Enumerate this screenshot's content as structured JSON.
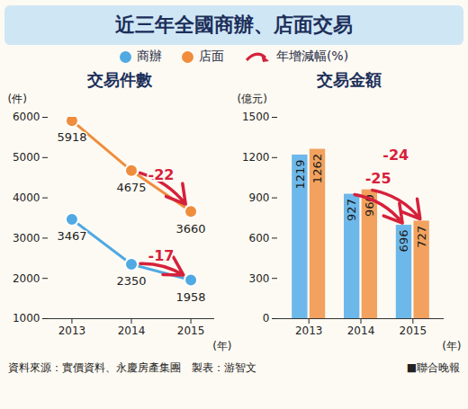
{
  "title": "近三年全國商辦、店面交易",
  "legend": "top",
  "change_legend": {
    "label": "年增減幅(%)",
    "color": "#d6213b"
  },
  "source": "資料來源：實價資料、永慶房產集團　製表：游智文",
  "publisher": "■聯合晚報",
  "chart_data": [
    {
      "type": "line",
      "title": "交易件數",
      "ylabel": "(件)",
      "xlabel": "(年)",
      "categories": [
        "2013",
        "2014",
        "2015"
      ],
      "series": [
        {
          "name": "商辦",
          "color": "#4fa9e3",
          "values": [
            3467,
            2350,
            1958
          ]
        },
        {
          "name": "店面",
          "color": "#ef8d3c",
          "values": [
            5918,
            4675,
            3660
          ]
        }
      ],
      "ylim": [
        1000,
        6000
      ],
      "yticks": [
        1000,
        2000,
        3000,
        4000,
        5000,
        6000
      ],
      "grid": false,
      "data_labels": true,
      "marker": "circle",
      "annotations": [
        {
          "series": "店面",
          "from": "2014",
          "to": "2015",
          "text": "-22"
        },
        {
          "series": "商辦",
          "from": "2014",
          "to": "2015",
          "text": "-17"
        }
      ]
    },
    {
      "type": "bar",
      "title": "交易金額",
      "ylabel": "(億元)",
      "xlabel": "(年)",
      "categories": [
        "2013",
        "2014",
        "2015"
      ],
      "series": [
        {
          "name": "商辦",
          "color": "#6db8ea",
          "values": [
            1219,
            927,
            696
          ]
        },
        {
          "name": "店面",
          "color": "#f2a25e",
          "values": [
            1262,
            960,
            727
          ]
        }
      ],
      "ylim": [
        0,
        1500
      ],
      "yticks": [
        0,
        300,
        600,
        900,
        1200,
        1500
      ],
      "grid": false,
      "data_labels": true,
      "annotations": [
        {
          "series": "商辦",
          "from": "2014",
          "to": "2015",
          "text": "-25"
        },
        {
          "series": "店面",
          "from": "2014",
          "to": "2015",
          "text": "-24"
        }
      ]
    }
  ]
}
